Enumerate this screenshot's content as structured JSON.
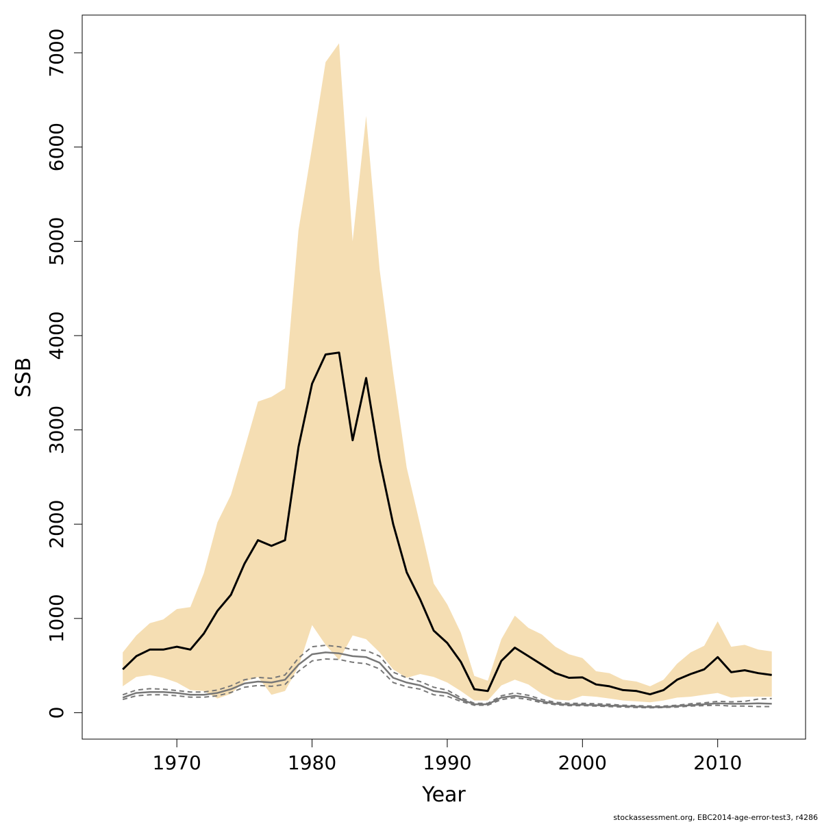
{
  "chart_data": {
    "type": "area",
    "xlabel": "Year",
    "ylabel": "SSB",
    "xlim": [
      1963,
      2016.5
    ],
    "ylim": [
      -280,
      7400
    ],
    "xticks": [
      1970,
      1980,
      1990,
      2000,
      2010
    ],
    "yticks": [
      0,
      1000,
      2000,
      3000,
      4000,
      5000,
      6000,
      7000
    ],
    "grid": false,
    "footnote": "stockassessment.org, EBC2014-age-error-test3, r4286",
    "colors": {
      "band": "#f5deb3",
      "estimate": "#000000",
      "comparison": "#777777",
      "comparison_ci": "#777777"
    },
    "x": [
      1966,
      1967,
      1968,
      1969,
      1970,
      1971,
      1972,
      1973,
      1974,
      1975,
      1976,
      1977,
      1978,
      1979,
      1980,
      1981,
      1982,
      1983,
      1984,
      1985,
      1986,
      1987,
      1988,
      1989,
      1990,
      1991,
      1992,
      1993,
      1994,
      1995,
      1996,
      1997,
      1998,
      1999,
      2000,
      2001,
      2002,
      2003,
      2004,
      2005,
      2006,
      2007,
      2008,
      2009,
      2010,
      2011,
      2012,
      2013,
      2014
    ],
    "series": [
      {
        "values": [
          460,
          600,
          670,
          670,
          700,
          670,
          840,
          1080,
          1250,
          1580,
          1830,
          1770,
          1830,
          2820,
          3490,
          3800,
          3820,
          2890,
          3550,
          2680,
          2000,
          1490,
          1200,
          870,
          740,
          540,
          250,
          230,
          550,
          690,
          600,
          510,
          420,
          370,
          375,
          300,
          280,
          240,
          230,
          195,
          240,
          350,
          410,
          460,
          590,
          430,
          450,
          420,
          400
        ]
      },
      {
        "values": [
          640,
          820,
          950,
          990,
          1100,
          1120,
          1480,
          2020,
          2310,
          2800,
          3300,
          3350,
          3440,
          5120,
          6000,
          6900,
          7100,
          5000,
          6330,
          4700,
          3600,
          2600,
          1990,
          1370,
          1150,
          850,
          390,
          340,
          780,
          1030,
          900,
          830,
          700,
          620,
          580,
          440,
          420,
          350,
          330,
          280,
          350,
          520,
          640,
          710,
          970,
          700,
          720,
          670,
          650
        ]
      },
      {
        "values": [
          280,
          380,
          400,
          370,
          320,
          240,
          230,
          150,
          200,
          330,
          380,
          190,
          230,
          490,
          930,
          720,
          560,
          820,
          780,
          640,
          460,
          370,
          410,
          380,
          320,
          230,
          130,
          130,
          290,
          350,
          300,
          200,
          140,
          130,
          180,
          170,
          150,
          130,
          120,
          110,
          130,
          160,
          170,
          190,
          210,
          160,
          170,
          170,
          170
        ]
      },
      {
        "values": [
          160,
          210,
          220,
          220,
          210,
          190,
          190,
          210,
          250,
          310,
          330,
          320,
          350,
          510,
          620,
          640,
          630,
          600,
          590,
          530,
          370,
          320,
          290,
          230,
          210,
          140,
          90,
          90,
          160,
          180,
          160,
          120,
          95,
          85,
          85,
          80,
          75,
          70,
          65,
          60,
          60,
          70,
          80,
          90,
          100,
          95,
          95,
          100,
          95
        ]
      },
      {
        "values": [
          190,
          240,
          255,
          250,
          235,
          220,
          220,
          240,
          285,
          350,
          375,
          365,
          400,
          580,
          700,
          715,
          700,
          670,
          660,
          600,
          430,
          370,
          330,
          270,
          240,
          160,
          100,
          100,
          180,
          210,
          185,
          140,
          110,
          100,
          100,
          95,
          90,
          80,
          75,
          70,
          70,
          80,
          95,
          105,
          120,
          115,
          120,
          145,
          150
        ]
      },
      {
        "values": [
          140,
          180,
          190,
          190,
          180,
          165,
          165,
          180,
          215,
          270,
          290,
          280,
          300,
          440,
          550,
          570,
          565,
          535,
          520,
          465,
          320,
          275,
          250,
          190,
          175,
          120,
          80,
          80,
          140,
          160,
          140,
          105,
          85,
          75,
          75,
          70,
          65,
          60,
          55,
          52,
          55,
          60,
          70,
          75,
          80,
          70,
          70,
          65,
          65
        ]
      }
    ]
  }
}
